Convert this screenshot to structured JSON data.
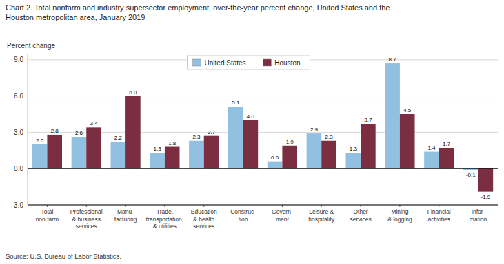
{
  "chart_data": {
    "type": "bar",
    "title": "Chart 2. Total nonfarm and industry supersector employment, over-the-year percent change, United States and the\nHouston metropolitan area, January 2019",
    "y_label": "Percent change",
    "source": "Source: U.S. Bureau of Labor Statistics.",
    "categories": [
      "Total\nnon farm",
      "Professional\n& business\nservices",
      "Manu-\nfacturing",
      "Trade,\ntransportation,\n& utilities",
      "Education\n& health\nservices",
      "Construc-\ntion",
      "Govern-\nment",
      "Leisure &\nhospitality",
      "Other\nservices",
      "Mining\n& logging",
      "Financial\nactivities",
      "Infor-\nmation"
    ],
    "series": [
      {
        "name": "United States",
        "color": "#92C0E0",
        "values": [
          2.0,
          2.6,
          2.2,
          1.3,
          2.3,
          5.1,
          0.6,
          2.9,
          1.3,
          8.7,
          1.4,
          -0.1
        ],
        "value_labels": [
          "2.0",
          "2.6",
          "2.2",
          "1.3",
          "2.3",
          "5.1",
          "0.6",
          "2.9",
          "1.3",
          "8.7",
          "1.4",
          "-0.1"
        ]
      },
      {
        "name": "Houston",
        "color": "#7B2D42",
        "values": [
          2.8,
          3.4,
          6.0,
          1.8,
          2.7,
          4.0,
          1.9,
          2.3,
          3.7,
          4.5,
          1.7,
          -1.9
        ],
        "value_labels": [
          "2.8",
          "3.4",
          "6.0",
          "1.8",
          "2.7",
          "4.0",
          "1.9",
          "2.3",
          "3.7",
          "4.5",
          "1.7",
          "-1.9"
        ]
      }
    ],
    "ylim": [
      -3.0,
      9.5
    ],
    "yticks": [
      {
        "value": -3.0,
        "label": "-3.0"
      },
      {
        "value": 0.0,
        "label": "0.0"
      },
      {
        "value": 3.0,
        "label": "3.0"
      },
      {
        "value": 6.0,
        "label": "6.0"
      },
      {
        "value": 9.0,
        "label": "9.0"
      }
    ],
    "grid": true,
    "legend": "top",
    "data_labels": true
  }
}
